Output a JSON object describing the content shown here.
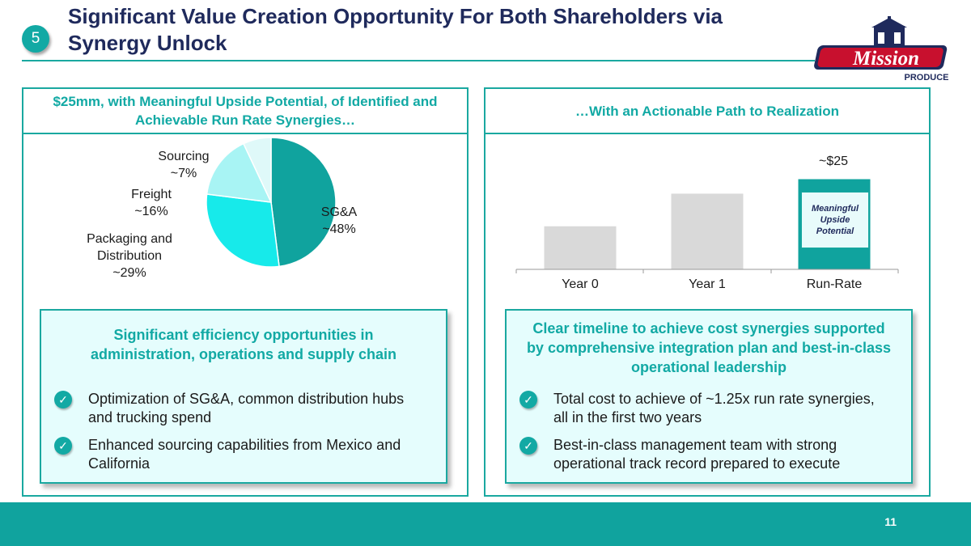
{
  "slide": {
    "section_number": "5",
    "title": "Significant Value Creation Opportunity For Both Shareholders via Synergy Unlock",
    "page_number": "11"
  },
  "logo": {
    "brand": "Mission",
    "sub": "PRODUCE"
  },
  "left_panel": {
    "header": "$25mm, with Meaningful Upside Potential, of Identified and Achievable Run Rate Synergies…",
    "box_title": "Significant efficiency opportunities in administration, operations and supply chain",
    "bullets": [
      "Optimization of SG&A, common distribution hubs and trucking spend",
      "Enhanced sourcing capabilities from Mexico and California"
    ]
  },
  "right_panel": {
    "header": "…With an Actionable Path to Realization",
    "upside_label": "Meaningful Upside Potential",
    "box_title": "Clear timeline to achieve cost synergies supported by comprehensive integration plan and best-in-class operational leadership",
    "bullets": [
      "Total cost to achieve of ~1.25x run rate synergies, all in the first two years",
      "Best-in-class management team with strong operational track record prepared to execute"
    ]
  },
  "colors": {
    "accent": "#1aa8a0",
    "navy": "#1f2a5c",
    "box_fill": "#e5fdfd",
    "logo_red": "#c8102e"
  },
  "chart_data": [
    {
      "type": "pie",
      "slices": [
        {
          "label": "SG&A",
          "value_label": "~48%",
          "value": 48,
          "color": "#10a39e"
        },
        {
          "label": "Packaging and Distribution",
          "value_label": "~29%",
          "value": 29,
          "color": "#17eaea"
        },
        {
          "label": "Freight",
          "value_label": "~16%",
          "value": 16,
          "color": "#a8f4f4"
        },
        {
          "label": "Sourcing",
          "value_label": "~7%",
          "value": 7,
          "color": "#dff9f9"
        }
      ]
    },
    {
      "type": "bar",
      "categories": [
        "Year 0",
        "Year 1",
        "Run-Rate"
      ],
      "values": [
        0.48,
        0.84,
        1.0
      ],
      "data_labels": [
        "",
        "",
        "~$25"
      ],
      "colors": [
        "#d9d9d9",
        "#d9d9d9",
        "#10a39e"
      ]
    }
  ]
}
